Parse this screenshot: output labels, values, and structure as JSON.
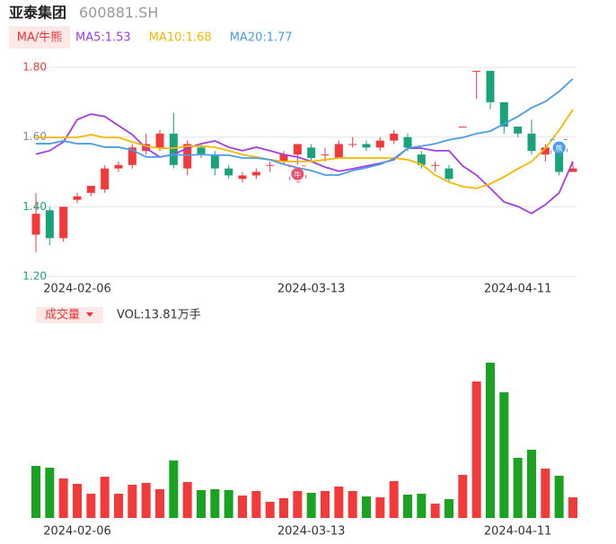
{
  "chart_data": {
    "type": "candlestick",
    "title": "亚泰集团",
    "subtitle": "600881.SH",
    "indicator_button": "MA/牛熊",
    "categories": [
      null,
      null,
      null,
      "2024-02-06",
      null,
      null,
      null,
      null,
      null,
      null,
      null,
      null,
      null,
      null,
      null,
      null,
      null,
      null,
      null,
      null,
      "2024-03-13",
      null,
      null,
      null,
      null,
      null,
      null,
      null,
      null,
      null,
      null,
      null,
      null,
      null,
      null,
      "2024-04-11",
      null,
      null,
      null,
      null
    ],
    "open": [
      1.32,
      1.39,
      1.31,
      1.42,
      1.44,
      1.45,
      1.51,
      1.52,
      1.56,
      1.57,
      1.61,
      1.51,
      1.57,
      1.55,
      1.51,
      1.48,
      1.49,
      1.52,
      1.53,
      1.55,
      1.57,
      1.55,
      1.54,
      1.58,
      1.58,
      1.57,
      1.59,
      1.6,
      1.55,
      1.52,
      1.51,
      1.63,
      1.79,
      1.79,
      1.7,
      1.63,
      1.61,
      1.55,
      1.56,
      1.5
    ],
    "high": [
      1.44,
      1.4,
      1.4,
      1.44,
      1.46,
      1.52,
      1.53,
      1.58,
      1.61,
      1.62,
      1.67,
      1.59,
      1.58,
      1.56,
      1.52,
      1.5,
      1.51,
      1.53,
      1.56,
      1.58,
      1.58,
      1.57,
      1.59,
      1.6,
      1.59,
      1.6,
      1.62,
      1.61,
      1.56,
      1.53,
      1.52,
      1.63,
      1.79,
      1.79,
      1.7,
      1.63,
      1.65,
      1.58,
      1.58,
      1.53
    ],
    "low": [
      1.27,
      1.29,
      1.3,
      1.41,
      1.43,
      1.44,
      1.5,
      1.51,
      1.55,
      1.56,
      1.51,
      1.49,
      1.54,
      1.49,
      1.48,
      1.47,
      1.48,
      1.5,
      1.52,
      1.52,
      1.53,
      1.53,
      1.54,
      1.57,
      1.56,
      1.56,
      1.58,
      1.56,
      1.51,
      1.5,
      1.47,
      1.63,
      1.71,
      1.68,
      1.61,
      1.6,
      1.55,
      1.53,
      1.49,
      1.5
    ],
    "close": [
      1.38,
      1.31,
      1.4,
      1.43,
      1.46,
      1.51,
      1.52,
      1.57,
      1.58,
      1.61,
      1.52,
      1.58,
      1.55,
      1.51,
      1.49,
      1.49,
      1.5,
      1.52,
      1.55,
      1.58,
      1.54,
      1.55,
      1.58,
      1.58,
      1.57,
      1.59,
      1.61,
      1.57,
      1.52,
      1.52,
      1.48,
      1.63,
      1.79,
      1.7,
      1.63,
      1.61,
      1.56,
      1.57,
      1.5,
      1.51
    ],
    "up_color": "#f23a3a",
    "down_color": "#1aa37a",
    "series": [
      {
        "name": "MA5",
        "legend": "MA5:1.53",
        "color": "#a23de6",
        "values": [
          1.551,
          1.561,
          1.586,
          1.65,
          1.666,
          1.659,
          1.633,
          1.607,
          1.568,
          1.543,
          1.55,
          1.568,
          1.581,
          1.589,
          1.571,
          1.561,
          1.571,
          1.561,
          1.55,
          1.543,
          1.53,
          1.514,
          1.502,
          1.509,
          1.517,
          1.525,
          1.535,
          1.568,
          1.568,
          1.561,
          1.561,
          1.517,
          1.491,
          1.453,
          1.414,
          1.401,
          1.381,
          1.406,
          1.44,
          1.53
        ]
      },
      {
        "name": "MA10",
        "legend": "MA10:1.68",
        "color": "#f5b800",
        "values": [
          1.599,
          1.599,
          1.599,
          1.599,
          1.607,
          1.599,
          1.599,
          1.586,
          1.574,
          1.568,
          1.568,
          1.574,
          1.574,
          1.571,
          1.561,
          1.55,
          1.543,
          1.535,
          1.53,
          1.53,
          1.53,
          1.535,
          1.54,
          1.54,
          1.54,
          1.54,
          1.54,
          1.535,
          1.522,
          1.491,
          1.471,
          1.458,
          1.453,
          1.466,
          1.486,
          1.509,
          1.53,
          1.568,
          1.62,
          1.679
        ]
      },
      {
        "name": "MA20",
        "legend": "MA20:1.77",
        "color": "#4a9de8",
        "values": [
          1.581,
          1.581,
          1.589,
          1.581,
          1.581,
          1.571,
          1.571,
          1.563,
          1.543,
          1.543,
          1.55,
          1.548,
          1.55,
          1.548,
          1.548,
          1.54,
          1.54,
          1.535,
          1.522,
          1.512,
          1.504,
          1.491,
          1.491,
          1.504,
          1.512,
          1.522,
          1.538,
          1.568,
          1.574,
          1.581,
          1.592,
          1.599,
          1.61,
          1.617,
          1.638,
          1.659,
          1.684,
          1.702,
          1.731,
          1.767
        ]
      }
    ],
    "ylim": [
      1.18,
      1.84
    ],
    "yticks": [
      {
        "value": 1.8,
        "label": "1.80"
      },
      {
        "value": 1.6,
        "label": "1.60"
      },
      {
        "value": 1.4,
        "label": "1.40"
      },
      {
        "value": 1.2,
        "label": "1.20"
      }
    ],
    "ytick_colors": [
      "#f23a3a",
      "#888888",
      "#1aa37a",
      "#1aa37a"
    ],
    "grid": true,
    "annotations": [
      {
        "text": "牛",
        "index": 19,
        "color": "#f0506e"
      },
      {
        "text": "熊",
        "index": 38,
        "color": "#4a9de8"
      }
    ],
    "volume": {
      "title": "成交量",
      "label": "VOL:13.81万手",
      "ylim": [
        0,
        120
      ],
      "values": [
        34.8,
        33.6,
        26.4,
        22.8,
        16.2,
        27.6,
        16.2,
        22.2,
        23.4,
        19.2,
        38.4,
        24,
        18.6,
        19.2,
        18.6,
        15,
        18,
        10.8,
        13.2,
        18,
        16.8,
        18,
        21,
        18,
        14.4,
        13.8,
        24.6,
        15.6,
        16.2,
        9.6,
        12.6,
        28.8,
        91.2,
        103.8,
        84,
        40.2,
        45.6,
        33,
        28.2,
        13.81
      ],
      "colors": [
        "#1aa320",
        "#1aa320",
        "#f23a3a",
        "#f23a3a",
        "#f23a3a",
        "#f23a3a",
        "#f23a3a",
        "#f23a3a",
        "#f23a3a",
        "#f23a3a",
        "#1aa320",
        "#f23a3a",
        "#1aa320",
        "#1aa320",
        "#1aa320",
        "#f23a3a",
        "#f23a3a",
        "#f23a3a",
        "#f23a3a",
        "#f23a3a",
        "#1aa320",
        "#f23a3a",
        "#f23a3a",
        "#f23a3a",
        "#1aa320",
        "#f23a3a",
        "#f23a3a",
        "#1aa320",
        "#1aa320",
        "#f23a3a",
        "#1aa320",
        "#f23a3a",
        "#f23a3a",
        "#1aa320",
        "#1aa320",
        "#1aa320",
        "#1aa320",
        "#f23a3a",
        "#1aa320",
        "#f23a3a"
      ]
    }
  }
}
